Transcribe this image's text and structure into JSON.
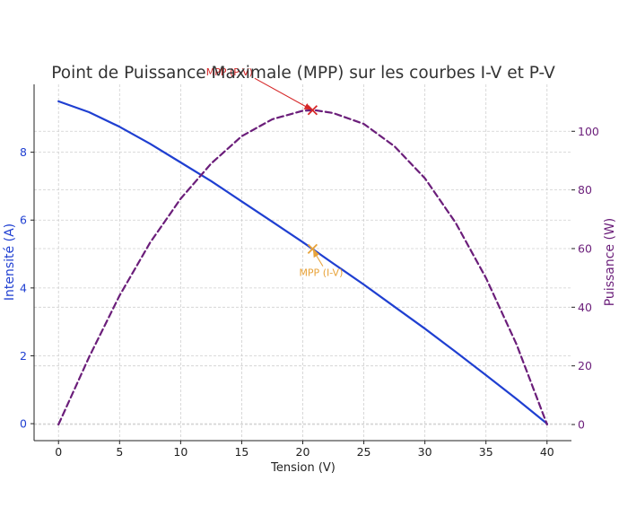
{
  "chart_data": {
    "type": "line",
    "title": "Point de Puissance Maximale (MPP) sur les courbes I-V et P-V",
    "xlabel": "Tension (V)",
    "ylabel_left": "Intensité (A)",
    "ylabel_right": "Puissance (W)",
    "xlim": [
      -2,
      42
    ],
    "ylim_left": [
      -0.5,
      10.0
    ],
    "ylim_right": [
      -5.5,
      116
    ],
    "x_ticks": [
      0,
      5,
      10,
      15,
      20,
      25,
      30,
      35,
      40
    ],
    "y_ticks_left": [
      0,
      2,
      4,
      6,
      8
    ],
    "y_ticks_right": [
      0,
      20,
      40,
      60,
      80,
      100
    ],
    "grid": true,
    "colors": {
      "current": "#1f3fd1",
      "power": "#6b1e7a",
      "mpp_pv": "#d62728",
      "mpp_iv": "#e8a33a",
      "title": "#333333"
    },
    "series": [
      {
        "axis": "left",
        "style": "solid",
        "x": [
          0,
          2.5,
          5,
          7.5,
          10,
          12.5,
          15,
          17.5,
          20,
          22.5,
          25,
          27.5,
          30,
          32.5,
          35,
          37.5,
          40
        ],
        "values": [
          9.5,
          9.18,
          8.75,
          8.25,
          7.7,
          7.15,
          6.55,
          5.95,
          5.35,
          4.72,
          4.1,
          3.45,
          2.8,
          2.12,
          1.43,
          0.73,
          0.0
        ]
      },
      {
        "axis": "right",
        "style": "dashed",
        "x": [
          0,
          2.5,
          5,
          7.5,
          10,
          12.5,
          15,
          17.5,
          20,
          21,
          22.5,
          25,
          27.5,
          30,
          32.5,
          35,
          37.5,
          40
        ],
        "values": [
          0,
          23,
          44,
          62,
          77,
          89,
          98.3,
          104.1,
          107,
          107.2,
          106.2,
          102.5,
          94.9,
          84,
          68.9,
          50,
          27.4,
          0
        ]
      }
    ],
    "annotations": [
      {
        "text": "MPP (P-V)",
        "axis": "right",
        "point": [
          20.8,
          107.2
        ],
        "label_at": [
          14,
          119
        ]
      },
      {
        "text": "MPP (I-V)",
        "axis": "left",
        "point": [
          20.8,
          5.15
        ],
        "label_at": [
          21.5,
          4.35
        ]
      }
    ]
  }
}
